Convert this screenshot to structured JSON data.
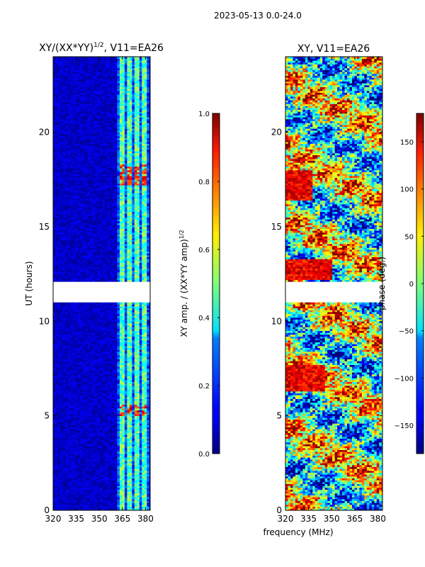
{
  "figure": {
    "suptitle": "2023-05-13 0.0-24.0",
    "xlabel_shared": "frequency (MHz)"
  },
  "chart_data": [
    {
      "type": "heatmap",
      "title_prefix": "XY/(XX*YY)",
      "title_exponent": "1/2",
      "title_suffix": ", V11=EA26",
      "ylabel": "UT (hours)",
      "xlim": [
        320,
        383
      ],
      "ylim": [
        0,
        24
      ],
      "xticks": [
        320,
        335,
        350,
        365,
        380
      ],
      "yticks": [
        0,
        5,
        10,
        15,
        20
      ],
      "colorbar": {
        "label_prefix": "XY amp. / (XX*YY amp)",
        "label_exponent": "1/2",
        "range": [
          0.0,
          1.0
        ],
        "ticks": [
          "0.0",
          "0.2",
          "0.4",
          "0.6",
          "0.8",
          "1.0"
        ],
        "tick_values": [
          0.0,
          0.2,
          0.4,
          0.6,
          0.8,
          1.0
        ]
      },
      "gap_hours": [
        [
          11.0,
          12.1
        ]
      ],
      "bright_freq_bands_mhz": [
        [
          363.5,
          366.5
        ],
        [
          368.5,
          371.5
        ],
        [
          373.5,
          376
        ],
        [
          378,
          380.5
        ]
      ],
      "high_amplitude_hours": [
        [
          17.2,
          18.2
        ],
        [
          5.0,
          5.6
        ]
      ]
    },
    {
      "type": "heatmap",
      "title": "XY, V11=EA26",
      "xlim": [
        320,
        383
      ],
      "ylim": [
        0,
        24
      ],
      "xticks": [
        320,
        335,
        350,
        365,
        380
      ],
      "yticks": [
        0,
        5,
        10,
        15,
        20
      ],
      "colorbar": {
        "label": "phase (deg.)",
        "range": [
          -180,
          180
        ],
        "ticks": [
          "−150",
          "−100",
          "−50",
          "0",
          "50",
          "100",
          "150"
        ],
        "tick_values": [
          -150,
          -100,
          -50,
          0,
          50,
          100,
          150
        ]
      },
      "gap_hours": [
        [
          11.0,
          12.1
        ]
      ]
    }
  ],
  "colors": {
    "jet_low": "#00007f",
    "jet_high": "#7f0000"
  }
}
